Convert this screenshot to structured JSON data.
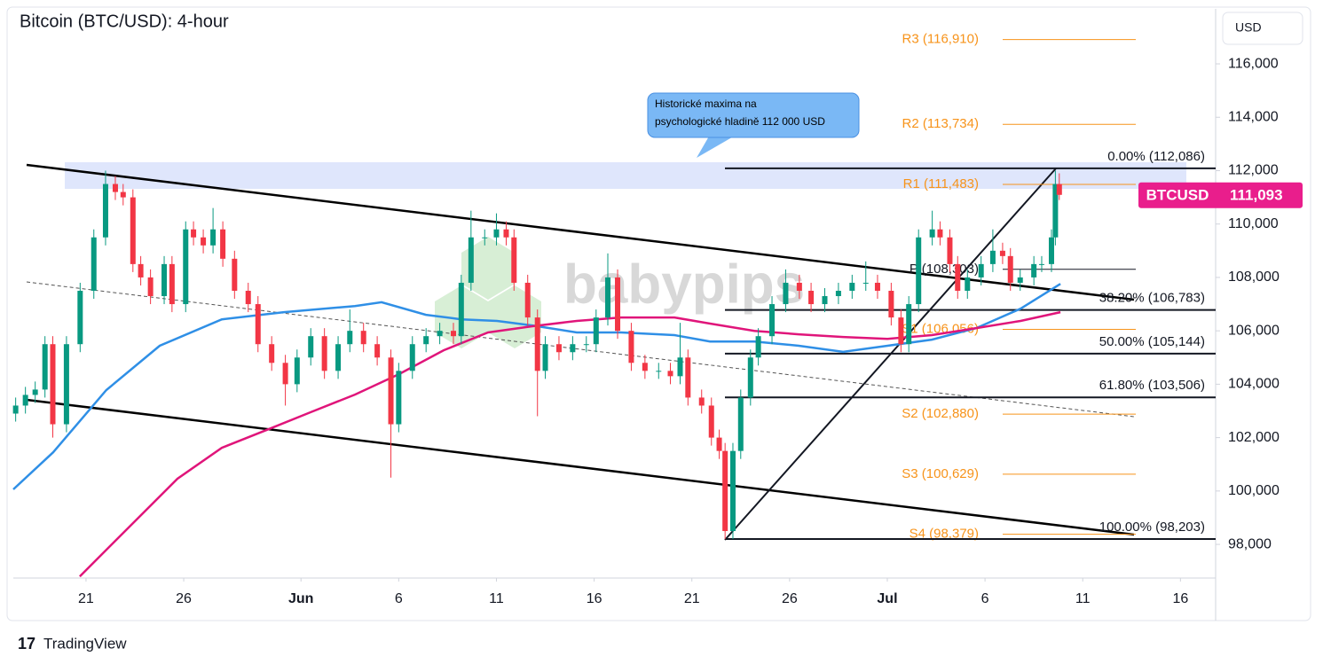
{
  "chart_data": {
    "type": "candlestick",
    "title": "Bitcoin (BTC/USD): 4-hour",
    "currency": "USD",
    "watermark": "babypips",
    "footer": "TradingView",
    "annotation": [
      "Historické maxima na",
      "psychologické hladině 112 000 USD"
    ],
    "up_color": "#089981",
    "down_color": "#f23645",
    "x": [
      17.4,
      17.9,
      18.4,
      18.9,
      19.3,
      20.0,
      20.7,
      21.4,
      22.0,
      22.5,
      22.9,
      23.4,
      23.8,
      24.3,
      25.0,
      25.4,
      26.1,
      26.5,
      27.0,
      27.5,
      28.0,
      28.6,
      29.3,
      29.8,
      30.5,
      31.2,
      31.8,
      32.5,
      33.2,
      33.9,
      34.5,
      35.2,
      35.9,
      36.6,
      37.0,
      37.7,
      38.4,
      39.1,
      39.8,
      40.2,
      40.7,
      41.4,
      42.0,
      42.5,
      42.9,
      43.6,
      44.1,
      44.5,
      45.2,
      45.9,
      46.6,
      47.1,
      47.7,
      48.2,
      48.9,
      49.6,
      50.3,
      50.9,
      51.4,
      51.8,
      52.5,
      53.0,
      53.4,
      53.7,
      54.1,
      54.5,
      55.0,
      55.4,
      56.1,
      56.8,
      57.5,
      58.1,
      58.8,
      59.5,
      60.2,
      60.9,
      61.5,
      62.2,
      62.7,
      63.1,
      63.6,
      64.3,
      64.7,
      65.2,
      65.6,
      66.1,
      66.8,
      67.4,
      67.9,
      68.3,
      68.8,
      69.5,
      69.9,
      70.4,
      70.6,
      70.8
    ],
    "open": [
      102900,
      103200,
      103600,
      103800,
      105500,
      102500,
      105500,
      107500,
      109500,
      111500,
      111200,
      111000,
      108500,
      108000,
      107300,
      108500,
      107000,
      109800,
      109500,
      109200,
      109800,
      108700,
      107500,
      107000,
      105500,
      104800,
      104000,
      105000,
      105800,
      104500,
      105500,
      106000,
      105500,
      105000,
      102500,
      104500,
      105500,
      105800,
      106000,
      105800,
      107800,
      109500,
      109500,
      109800,
      109500,
      107800,
      106500,
      104500,
      105500,
      105200,
      105500,
      105500,
      106500,
      108000,
      106000,
      104800,
      104500,
      104500,
      104300,
      105000,
      103500,
      103200,
      102000,
      101500,
      98500,
      101500,
      103500,
      105000,
      105800,
      107000,
      107800,
      107500,
      107000,
      107300,
      107500,
      107800,
      107800,
      107500,
      106500,
      105500,
      107000,
      109500,
      109800,
      109500,
      108500,
      107500,
      108000,
      108500,
      109000,
      108800,
      107800,
      108000,
      108500,
      108500,
      109500,
      111500
    ],
    "high": [
      103500,
      103900,
      104100,
      105800,
      105800,
      105800,
      107800,
      109800,
      112000,
      111800,
      111500,
      111300,
      108800,
      108300,
      108800,
      108800,
      110100,
      110100,
      109800,
      110600,
      110100,
      109000,
      107800,
      107300,
      105800,
      105100,
      105300,
      106100,
      106100,
      105800,
      106800,
      106300,
      105800,
      105300,
      104800,
      105800,
      106100,
      106300,
      106300,
      108100,
      110500,
      109800,
      110400,
      110100,
      109800,
      108100,
      106800,
      105800,
      105800,
      105800,
      105800,
      106800,
      108900,
      108300,
      106300,
      105100,
      104800,
      104800,
      106300,
      105300,
      103800,
      103500,
      102300,
      101800,
      101800,
      103800,
      105300,
      106100,
      107300,
      108300,
      108100,
      107800,
      107600,
      107800,
      108100,
      108600,
      108100,
      107800,
      106800,
      107300,
      109800,
      110500,
      110100,
      109800,
      108800,
      108300,
      108800,
      109800,
      109300,
      109100,
      108300,
      108800,
      108800,
      109800,
      112000,
      111900
    ],
    "low": [
      102600,
      102900,
      103300,
      103500,
      102000,
      102200,
      105200,
      107200,
      109200,
      110900,
      110700,
      108200,
      107700,
      107000,
      107000,
      106700,
      106700,
      109200,
      108900,
      108900,
      108400,
      107200,
      106700,
      105200,
      104500,
      103200,
      103700,
      104700,
      104200,
      104200,
      105200,
      105200,
      104700,
      100500,
      102200,
      104200,
      105200,
      105500,
      105500,
      105500,
      107500,
      109200,
      109200,
      109200,
      107500,
      106200,
      102800,
      104200,
      104900,
      104900,
      105200,
      105200,
      106200,
      105700,
      104500,
      104200,
      104200,
      104000,
      104000,
      103200,
      102900,
      101700,
      101200,
      98200,
      98200,
      101200,
      103200,
      104700,
      105500,
      106700,
      107200,
      106700,
      106700,
      107000,
      107200,
      107500,
      107200,
      106200,
      105200,
      105200,
      106700,
      109200,
      109200,
      108200,
      107200,
      107200,
      107700,
      108200,
      108500,
      107500,
      107500,
      107700,
      108200,
      108200,
      109200,
      110900
    ],
    "close": [
      103200,
      103600,
      103800,
      105500,
      102500,
      105500,
      107500,
      109500,
      111500,
      111200,
      111000,
      108500,
      108000,
      107300,
      108500,
      107000,
      109800,
      109500,
      109200,
      109800,
      108700,
      107500,
      107000,
      105500,
      104800,
      104000,
      105000,
      105800,
      104500,
      105500,
      106000,
      105500,
      105000,
      102500,
      104500,
      105500,
      105800,
      106000,
      105800,
      107800,
      109500,
      109500,
      109800,
      109500,
      107800,
      106500,
      104500,
      105500,
      105200,
      105500,
      105500,
      106500,
      108000,
      106000,
      104800,
      104500,
      104500,
      104300,
      105000,
      103500,
      103200,
      102000,
      101500,
      98500,
      101500,
      103500,
      105000,
      105800,
      107000,
      107800,
      107500,
      107000,
      107300,
      107500,
      107800,
      107800,
      107500,
      106500,
      105500,
      107000,
      109500,
      109800,
      109500,
      108500,
      107500,
      108000,
      108500,
      109000,
      108800,
      107800,
      108000,
      108500,
      108500,
      109500,
      111500,
      111093
    ],
    "moving_averages": [
      {
        "color": "#2f8fe6",
        "x": [
          17.28,
          19.32,
          22.04,
          24.77,
          27.95,
          31.13,
          34.76,
          36.12,
          38.39,
          40.21,
          42.03,
          43.84,
          46.11,
          48.38,
          51.11,
          52.93,
          55.2,
          57.47,
          59.74,
          62.01,
          64.28,
          66.55,
          68.82,
          70.86
        ],
        "values": [
          100060,
          101450,
          103780,
          105440,
          106430,
          106700,
          106930,
          107070,
          106600,
          106430,
          106370,
          106200,
          105940,
          105940,
          105840,
          105600,
          105600,
          105440,
          105210,
          105440,
          105670,
          106100,
          106830,
          107760
        ]
      },
      {
        "color": "#e0157a",
        "x": [
          20.68,
          23.41,
          25.68,
          27.95,
          30.22,
          32.49,
          34.76,
          37.03,
          39.3,
          41.57,
          43.84,
          46.11,
          48.38,
          51.11,
          52.93,
          55.2,
          57.47,
          59.74,
          62.01,
          64.28,
          66.55,
          68.82,
          70.86
        ],
        "values": [
          96800,
          98800,
          100460,
          101620,
          102280,
          102950,
          103610,
          104380,
          105270,
          105940,
          106170,
          106370,
          106500,
          106500,
          106270,
          106000,
          105870,
          105770,
          105700,
          105840,
          106100,
          106370,
          106700
        ]
      }
    ],
    "fib_levels": [
      {
        "label": "0.00% (112,086)",
        "value": 112086
      },
      {
        "label": "38.20% (106,783)",
        "value": 106783
      },
      {
        "label": "50.00% (105,144)",
        "value": 105144
      },
      {
        "label": "61.80% (103,506)",
        "value": 103506
      },
      {
        "label": "100.00% (98,203)",
        "value": 98203
      }
    ],
    "pivots": [
      {
        "label": "R3 (116,910)",
        "value": 116910,
        "color": "#f7931a"
      },
      {
        "label": "R2 (113,734)",
        "value": 113734,
        "color": "#f7931a"
      },
      {
        "label": "R1 (111,483)",
        "value": 111483,
        "color": "#f7931a"
      },
      {
        "label": "P (108,303)",
        "value": 108303,
        "color": "#131722"
      },
      {
        "label": "S1 (106,056)",
        "value": 106056,
        "color": "#f7931a"
      },
      {
        "label": "S2 (102,880)",
        "value": 102880,
        "color": "#f7931a"
      },
      {
        "label": "S3 (100,629)",
        "value": 100629,
        "color": "#f7931a"
      },
      {
        "label": "S4 (98,379)",
        "value": 98379,
        "color": "#f7931a"
      }
    ],
    "price_tag": {
      "symbol": "BTCUSD",
      "value": 111093,
      "label": "111,093",
      "color": "#e91e8c"
    },
    "xlim": [
      17.28,
      78.8
    ],
    "ylim": [
      96740,
      118060
    ],
    "xticks": [
      {
        "value": 21,
        "label": "21"
      },
      {
        "value": 26,
        "label": "26"
      },
      {
        "value": 32,
        "label": "Jun"
      },
      {
        "value": 37,
        "label": "6"
      },
      {
        "value": 42,
        "label": "11"
      },
      {
        "value": 47,
        "label": "16"
      },
      {
        "value": 52,
        "label": "21"
      },
      {
        "value": 57,
        "label": "26"
      },
      {
        "value": 62,
        "label": "Jul"
      },
      {
        "value": 67,
        "label": "6"
      },
      {
        "value": 72,
        "label": "11"
      },
      {
        "value": 77,
        "label": "16"
      }
    ],
    "yticks": [
      {
        "value": 98000,
        "label": "98,000"
      },
      {
        "value": 100000,
        "label": "100,000"
      },
      {
        "value": 102000,
        "label": "102,000"
      },
      {
        "value": 104000,
        "label": "104,000"
      },
      {
        "value": 106000,
        "label": "106,000"
      },
      {
        "value": 108000,
        "label": "108,000"
      },
      {
        "value": 110000,
        "label": "110,000"
      },
      {
        "value": 112000,
        "label": "112,000"
      },
      {
        "value": 114000,
        "label": "114,000"
      },
      {
        "value": 116000,
        "label": "116,000"
      }
    ]
  }
}
